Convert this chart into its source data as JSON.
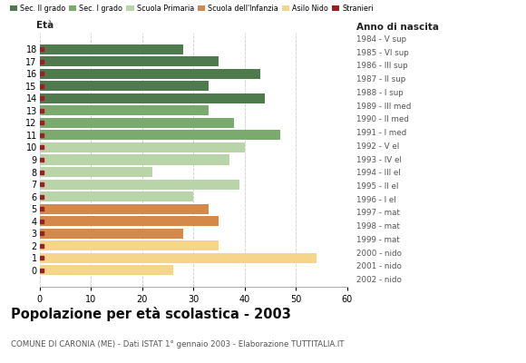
{
  "ages_display": [
    "18",
    "17",
    "16",
    "15",
    "14",
    "13",
    "12",
    "11",
    "10",
    "9",
    "8",
    "7",
    "6",
    "5",
    "4",
    "3",
    "2",
    "1",
    "0"
  ],
  "values": [
    28,
    35,
    43,
    33,
    44,
    33,
    38,
    47,
    40,
    37,
    22,
    39,
    30,
    33,
    35,
    28,
    35,
    54,
    26
  ],
  "right_labels": [
    "1984 - V sup",
    "1985 - VI sup",
    "1986 - III sup",
    "1987 - II sup",
    "1988 - I sup",
    "1989 - III med",
    "1990 - II med",
    "1991 - I med",
    "1992 - V el",
    "1993 - IV el",
    "1994 - III el",
    "1995 - II el",
    "1996 - I el",
    "1997 - mat",
    "1998 - mat",
    "1999 - mat",
    "2000 - nido",
    "2001 - nido",
    "2002 - nido"
  ],
  "bar_colors": [
    "#4e7a4e",
    "#4e7a4e",
    "#4e7a4e",
    "#4e7a4e",
    "#4e7a4e",
    "#7aaa6e",
    "#7aaa6e",
    "#7aaa6e",
    "#b8d4a8",
    "#b8d4a8",
    "#b8d4a8",
    "#b8d4a8",
    "#b8d4a8",
    "#d4894a",
    "#d4894a",
    "#d4894a",
    "#f5d58a",
    "#f5d58a",
    "#f5d58a"
  ],
  "stranieri_color": "#9b2020",
  "legend_labels": [
    "Sec. II grado",
    "Sec. I grado",
    "Scuola Primaria",
    "Scuola dell'Infanzia",
    "Asilo Nido",
    "Stranieri"
  ],
  "legend_colors": [
    "#4e7a4e",
    "#7aaa6e",
    "#b8d4a8",
    "#d4894a",
    "#f5d58a",
    "#9b2020"
  ],
  "title": "Popolazione per età scolastica - 2003",
  "subtitle": "COMUNE DI CARONIA (ME) - Dati ISTAT 1° gennaio 2003 - Elaborazione TUTTITALIA.IT",
  "ylabel_text": "Età",
  "xlabel_right": "Anno di nascita",
  "xlim": [
    0,
    60
  ],
  "xticks": [
    0,
    10,
    20,
    30,
    40,
    50,
    60
  ],
  "bg_color": "#ffffff",
  "grid_color": "#cccccc"
}
